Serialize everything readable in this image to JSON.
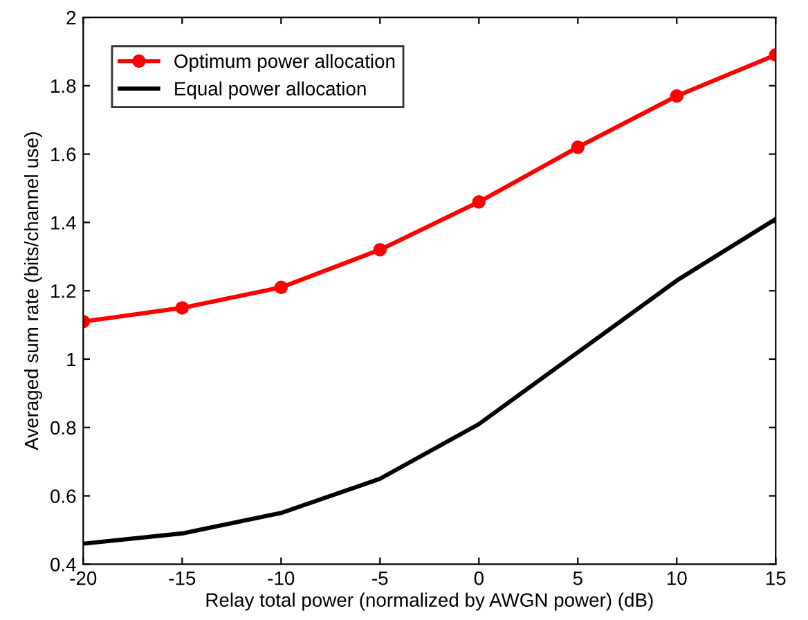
{
  "chart_data": {
    "type": "line",
    "xlabel": "Relay total power (normalized by AWGN power) (dB)",
    "ylabel": "Averaged sum rate (bits/channel use)",
    "x": [
      -20,
      -15,
      -10,
      -5,
      0,
      5,
      10,
      15
    ],
    "series": [
      {
        "name": "Optimum power allocation",
        "color": "#ff0000",
        "marker": "circle",
        "values": [
          1.11,
          1.15,
          1.21,
          1.32,
          1.46,
          1.62,
          1.77,
          1.89
        ]
      },
      {
        "name": "Equal power allocation",
        "color": "#000000",
        "marker": "none",
        "values": [
          0.46,
          0.49,
          0.55,
          0.65,
          0.81,
          1.02,
          1.23,
          1.41
        ]
      }
    ],
    "xlim": [
      -20,
      15
    ],
    "xticks": [
      -20,
      -15,
      -10,
      -5,
      0,
      5,
      10,
      15
    ],
    "ylim": [
      0.4,
      2
    ],
    "yticks": [
      0.4,
      0.6,
      0.8,
      1,
      1.2,
      1.4,
      1.6,
      1.8,
      2
    ],
    "grid": false,
    "legend": "top left",
    "line_style": "solid"
  }
}
